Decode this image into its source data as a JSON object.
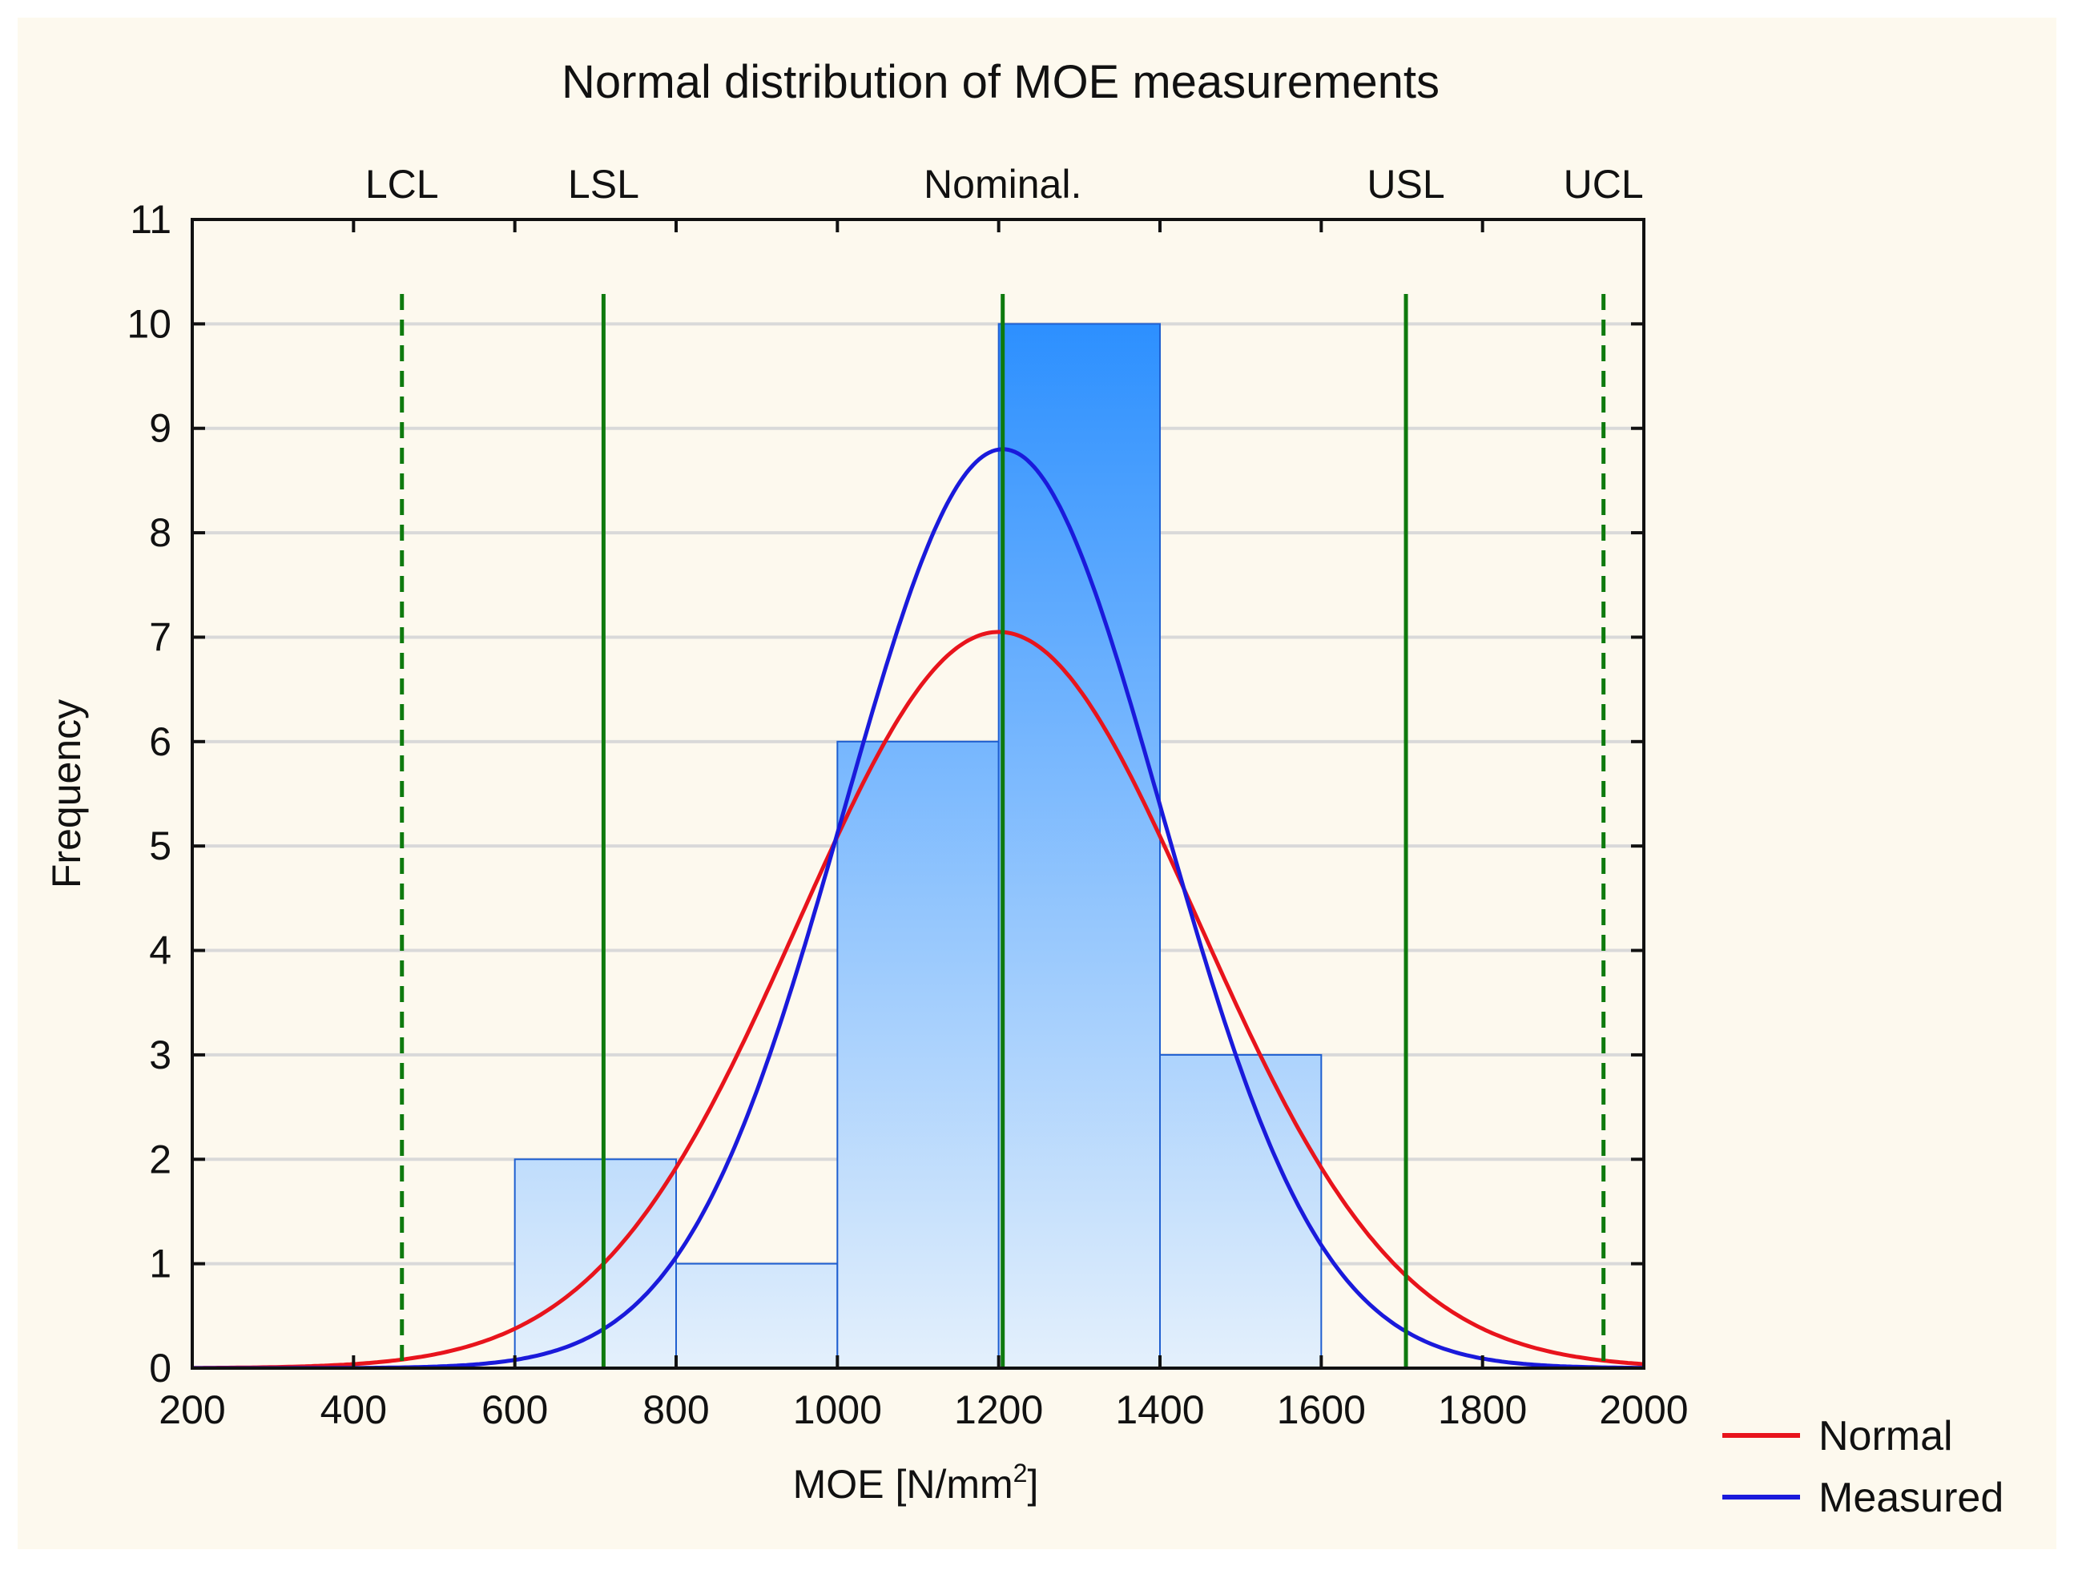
{
  "chart_data": {
    "type": "bar",
    "title": "Normal distribution of MOE measurements",
    "xlabel": {
      "main": "MOE [N/mm",
      "superscript": "2",
      "end": "]"
    },
    "ylabel": "Frequency",
    "xlim": [
      200,
      2000
    ],
    "ylim": [
      0,
      11
    ],
    "x_ticks": [
      "200",
      "400",
      "600",
      "800",
      "1000",
      "1200",
      "1400",
      "1600",
      "1800",
      "2000"
    ],
    "y_ticks": [
      "0",
      "1",
      "2",
      "3",
      "4",
      "5",
      "6",
      "7",
      "8",
      "9",
      "10",
      "11"
    ],
    "grid": true,
    "bins": [
      {
        "from": 600,
        "to": 800,
        "value": 2
      },
      {
        "from": 800,
        "to": 1000,
        "value": 1
      },
      {
        "from": 1000,
        "to": 1200,
        "value": 6
      },
      {
        "from": 1200,
        "to": 1400,
        "value": 10
      },
      {
        "from": 1400,
        "to": 1600,
        "value": 3
      }
    ],
    "curves": [
      {
        "name": "Normal",
        "color": "#e8141c",
        "mean": 1200,
        "peak": 7.05,
        "sigma": 248
      },
      {
        "name": "Measured",
        "color": "#1a1adb",
        "mean": 1205,
        "peak": 8.8,
        "sigma": 197
      }
    ],
    "reference_lines": [
      {
        "label": "LCL",
        "x": 460,
        "style": "dashed"
      },
      {
        "label": "LSL",
        "x": 710,
        "style": "solid"
      },
      {
        "label": "Nominal.",
        "x": 1205,
        "style": "solid"
      },
      {
        "label": "USL",
        "x": 1705,
        "style": "solid"
      },
      {
        "label": "UCL",
        "x": 1950,
        "style": "dashed"
      }
    ],
    "legend": {
      "placement": "bottom-right",
      "entries": [
        "Normal",
        "Measured"
      ]
    },
    "colors": {
      "bar_top": "#1a86ff",
      "bar_bottom": "#e4f0fc",
      "bar_stroke": "#1f5fd0",
      "reference": "#0e7a0e",
      "grid": "#d9d9d9",
      "background": "#fdf9ee"
    }
  }
}
